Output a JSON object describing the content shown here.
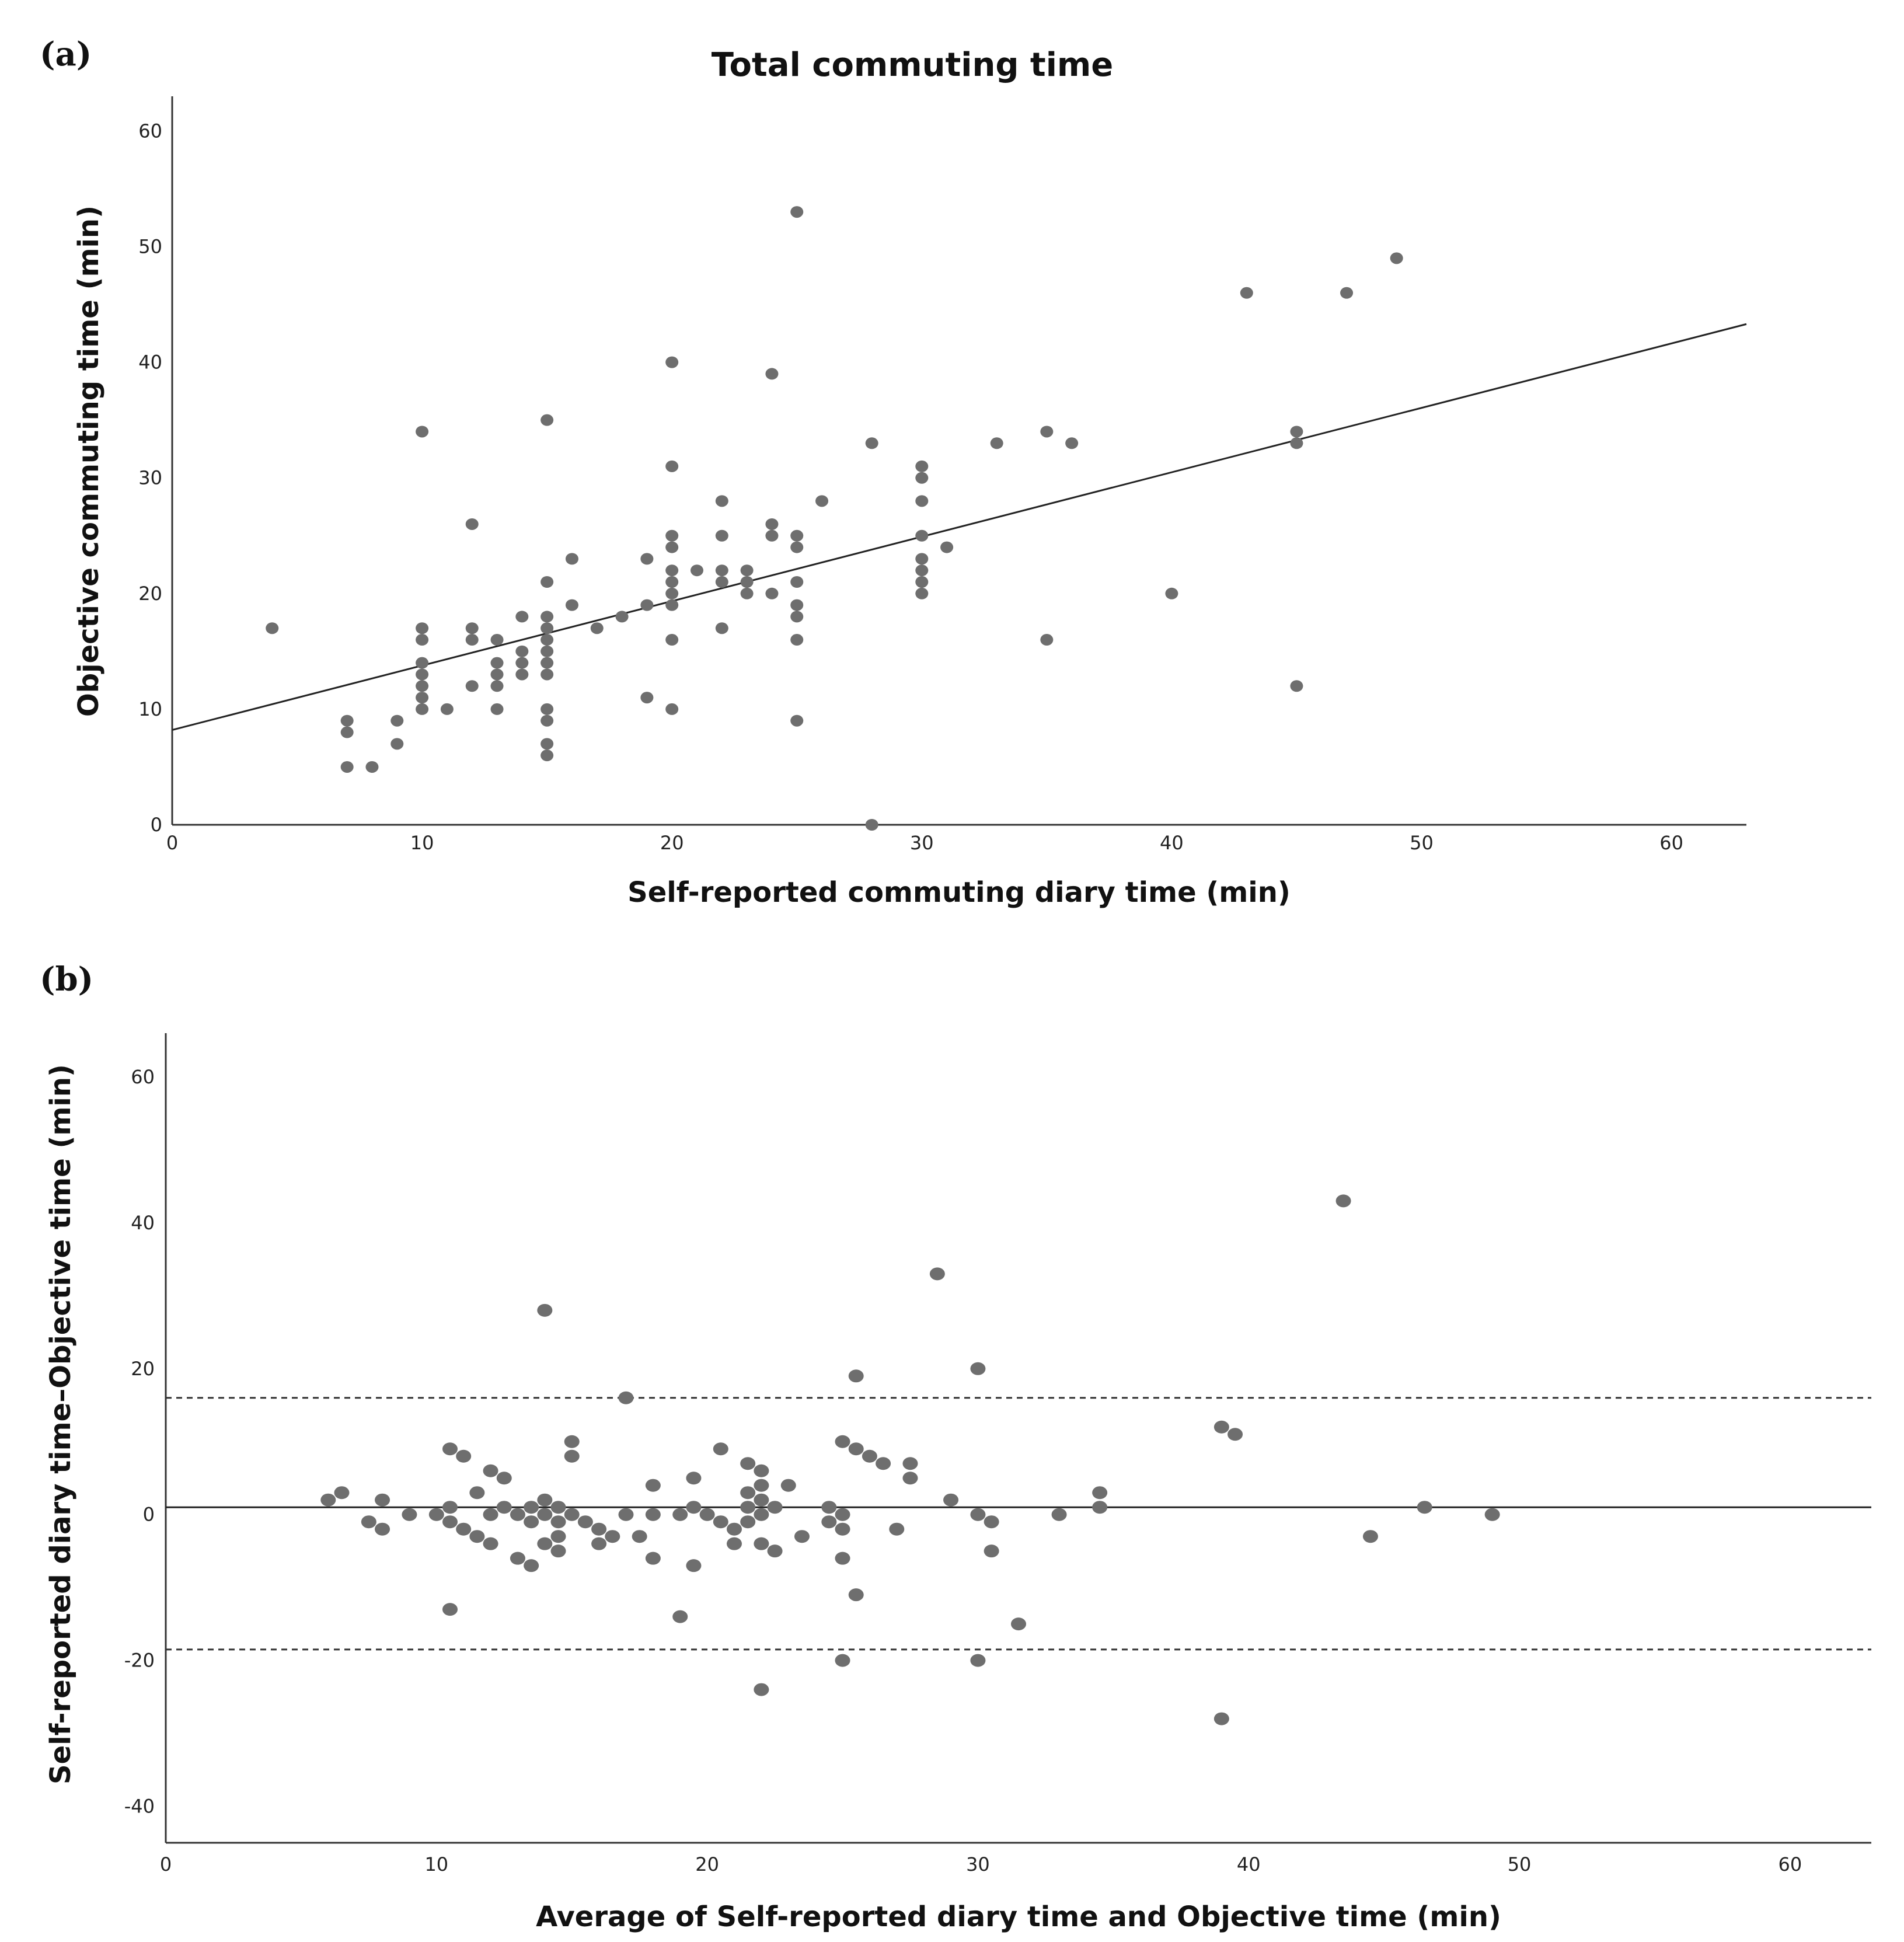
{
  "chart_data": [
    {
      "type": "scatter",
      "panel_label": "(a)",
      "title": "Total commuting time",
      "xlabel": "Self-reported commuting diary time (min)",
      "ylabel": "Objective commuting time (min)",
      "xlim": [
        0,
        63
      ],
      "ylim": [
        0,
        63
      ],
      "x_ticks": [
        0,
        10,
        20,
        30,
        40,
        50,
        60
      ],
      "y_ticks": [
        0,
        10,
        20,
        30,
        40,
        50,
        60
      ],
      "point_color": "#6e6e6e",
      "fit_line": {
        "x0": 0,
        "y0": 8.2,
        "x1": 63,
        "y1": 43.3
      },
      "points": [
        [
          4,
          17
        ],
        [
          7,
          9
        ],
        [
          7,
          8
        ],
        [
          7,
          5
        ],
        [
          8,
          5
        ],
        [
          9,
          9
        ],
        [
          9,
          7
        ],
        [
          10,
          34
        ],
        [
          10,
          17
        ],
        [
          10,
          16
        ],
        [
          10,
          14
        ],
        [
          10,
          13
        ],
        [
          10,
          12
        ],
        [
          10,
          11
        ],
        [
          10,
          10
        ],
        [
          11,
          10
        ],
        [
          12,
          26
        ],
        [
          12,
          17
        ],
        [
          12,
          16
        ],
        [
          12,
          12
        ],
        [
          13,
          16
        ],
        [
          13,
          14
        ],
        [
          13,
          13
        ],
        [
          13,
          12
        ],
        [
          13,
          10
        ],
        [
          14,
          18
        ],
        [
          14,
          15
        ],
        [
          14,
          14
        ],
        [
          14,
          13
        ],
        [
          15,
          35
        ],
        [
          15,
          21
        ],
        [
          15,
          18
        ],
        [
          15,
          17
        ],
        [
          15,
          16
        ],
        [
          15,
          15
        ],
        [
          15,
          14
        ],
        [
          15,
          13
        ],
        [
          15,
          10
        ],
        [
          15,
          9
        ],
        [
          15,
          7
        ],
        [
          15,
          6
        ],
        [
          16,
          23
        ],
        [
          16,
          19
        ],
        [
          17,
          17
        ],
        [
          18,
          18
        ],
        [
          19,
          23
        ],
        [
          19,
          19
        ],
        [
          19,
          11
        ],
        [
          20,
          40
        ],
        [
          20,
          31
        ],
        [
          20,
          25
        ],
        [
          20,
          24
        ],
        [
          20,
          22
        ],
        [
          20,
          21
        ],
        [
          20,
          20
        ],
        [
          20,
          19
        ],
        [
          20,
          16
        ],
        [
          20,
          10
        ],
        [
          21,
          22
        ],
        [
          22,
          28
        ],
        [
          22,
          25
        ],
        [
          22,
          22
        ],
        [
          22,
          21
        ],
        [
          22,
          17
        ],
        [
          23,
          22
        ],
        [
          23,
          21
        ],
        [
          23,
          20
        ],
        [
          24,
          39
        ],
        [
          24,
          26
        ],
        [
          24,
          25
        ],
        [
          24,
          20
        ],
        [
          25,
          53
        ],
        [
          25,
          25
        ],
        [
          25,
          24
        ],
        [
          25,
          21
        ],
        [
          25,
          19
        ],
        [
          25,
          18
        ],
        [
          25,
          16
        ],
        [
          25,
          9
        ],
        [
          26,
          28
        ],
        [
          28,
          33
        ],
        [
          28,
          0
        ],
        [
          30,
          31
        ],
        [
          30,
          30
        ],
        [
          30,
          28
        ],
        [
          30,
          25
        ],
        [
          30,
          23
        ],
        [
          30,
          22
        ],
        [
          30,
          21
        ],
        [
          30,
          20
        ],
        [
          31,
          24
        ],
        [
          33,
          33
        ],
        [
          35,
          34
        ],
        [
          35,
          16
        ],
        [
          36,
          33
        ],
        [
          40,
          20
        ],
        [
          43,
          46
        ],
        [
          45,
          34
        ],
        [
          45,
          33
        ],
        [
          45,
          12
        ],
        [
          47,
          46
        ],
        [
          49,
          49
        ]
      ]
    },
    {
      "type": "scatter",
      "panel_label": "(b)",
      "xlabel": "Average of Self-reported diary time and Objective time (min)",
      "ylabel": "Self-reported diary time–Objective time (min)",
      "xlim": [
        0,
        63
      ],
      "ylim": [
        -45,
        66
      ],
      "x_ticks": [
        0,
        10,
        20,
        30,
        40,
        50,
        60
      ],
      "y_ticks": [
        -40,
        -20,
        0,
        20,
        40,
        60
      ],
      "point_color": "#6e6e6e",
      "mean_line": 1,
      "upper_limit": 16,
      "lower_limit": -18.5,
      "points": [
        [
          6,
          2
        ],
        [
          6.5,
          3
        ],
        [
          7.5,
          -1
        ],
        [
          8,
          2
        ],
        [
          8,
          -2
        ],
        [
          9,
          0
        ],
        [
          10,
          0
        ],
        [
          10.5,
          9
        ],
        [
          10.5,
          1
        ],
        [
          10.5,
          -1
        ],
        [
          10.5,
          -13
        ],
        [
          11,
          8
        ],
        [
          11,
          -2
        ],
        [
          11.5,
          3
        ],
        [
          11.5,
          -3
        ],
        [
          12,
          6
        ],
        [
          12,
          0
        ],
        [
          12,
          -4
        ],
        [
          12.5,
          5
        ],
        [
          12.5,
          1
        ],
        [
          13,
          0
        ],
        [
          13,
          -6
        ],
        [
          13.5,
          1
        ],
        [
          13.5,
          -1
        ],
        [
          13.5,
          -7
        ],
        [
          14,
          28
        ],
        [
          14,
          2
        ],
        [
          14,
          0
        ],
        [
          14,
          -4
        ],
        [
          14.5,
          1
        ],
        [
          14.5,
          -1
        ],
        [
          14.5,
          -3
        ],
        [
          14.5,
          -5
        ],
        [
          15,
          10
        ],
        [
          15,
          8
        ],
        [
          15,
          0
        ],
        [
          15.5,
          -1
        ],
        [
          16,
          -2
        ],
        [
          16,
          -4
        ],
        [
          16.5,
          -3
        ],
        [
          17,
          16
        ],
        [
          17,
          0
        ],
        [
          17.5,
          -3
        ],
        [
          18,
          4
        ],
        [
          18,
          0
        ],
        [
          18,
          -6
        ],
        [
          19,
          0
        ],
        [
          19,
          -14
        ],
        [
          19.5,
          5
        ],
        [
          19.5,
          1
        ],
        [
          19.5,
          -7
        ],
        [
          20,
          0
        ],
        [
          20.5,
          9
        ],
        [
          20.5,
          -1
        ],
        [
          21,
          -2
        ],
        [
          21,
          -4
        ],
        [
          21.5,
          7
        ],
        [
          21.5,
          3
        ],
        [
          21.5,
          1
        ],
        [
          21.5,
          -1
        ],
        [
          22,
          6
        ],
        [
          22,
          4
        ],
        [
          22,
          2
        ],
        [
          22,
          0
        ],
        [
          22,
          -4
        ],
        [
          22,
          -24
        ],
        [
          22.5,
          1
        ],
        [
          22.5,
          -5
        ],
        [
          23,
          4
        ],
        [
          23.5,
          -3
        ],
        [
          24.5,
          1
        ],
        [
          24.5,
          -1
        ],
        [
          25,
          10
        ],
        [
          25,
          0
        ],
        [
          25,
          -2
        ],
        [
          25,
          -6
        ],
        [
          25,
          -20
        ],
        [
          25.5,
          19
        ],
        [
          25.5,
          9
        ],
        [
          25.5,
          -11
        ],
        [
          26,
          8
        ],
        [
          26.5,
          7
        ],
        [
          27,
          -2
        ],
        [
          27.5,
          7
        ],
        [
          27.5,
          5
        ],
        [
          28.5,
          33
        ],
        [
          29,
          2
        ],
        [
          30,
          20
        ],
        [
          30,
          0
        ],
        [
          30,
          -20
        ],
        [
          30.5,
          -1
        ],
        [
          30.5,
          -5
        ],
        [
          31.5,
          -15
        ],
        [
          33,
          0
        ],
        [
          34.5,
          3
        ],
        [
          34.5,
          1
        ],
        [
          39,
          12
        ],
        [
          39,
          -28
        ],
        [
          39.5,
          11
        ],
        [
          43.5,
          43
        ],
        [
          44.5,
          -3
        ],
        [
          46.5,
          1
        ],
        [
          49,
          0
        ]
      ]
    }
  ]
}
